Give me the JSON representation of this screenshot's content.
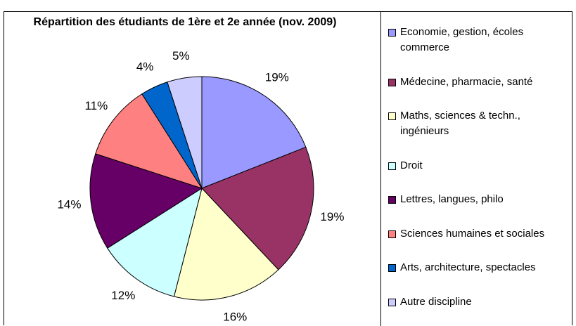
{
  "chart_data": {
    "type": "pie",
    "title": "Répartition des étudiants de 1ère et 2e année (nov. 2009)",
    "categories": [
      "Economie, gestion, écoles commerce",
      "Médecine, pharmacie, santé",
      "Maths, sciences & techn., ingénieurs",
      "Droit",
      "Lettres, langues, philo",
      "Sciences humaines et sociales",
      "Arts, architecture, spectacles",
      "Autre discipline"
    ],
    "values": [
      19,
      19,
      16,
      12,
      14,
      11,
      4,
      5
    ],
    "value_labels": [
      "19%",
      "19%",
      "16%",
      "12%",
      "14%",
      "11%",
      "4%",
      "5%"
    ],
    "colors": [
      "#9999ff",
      "#993366",
      "#ffffcc",
      "#ccffff",
      "#660066",
      "#ff8080",
      "#0066cc",
      "#ccccff"
    ],
    "legend": "right"
  }
}
